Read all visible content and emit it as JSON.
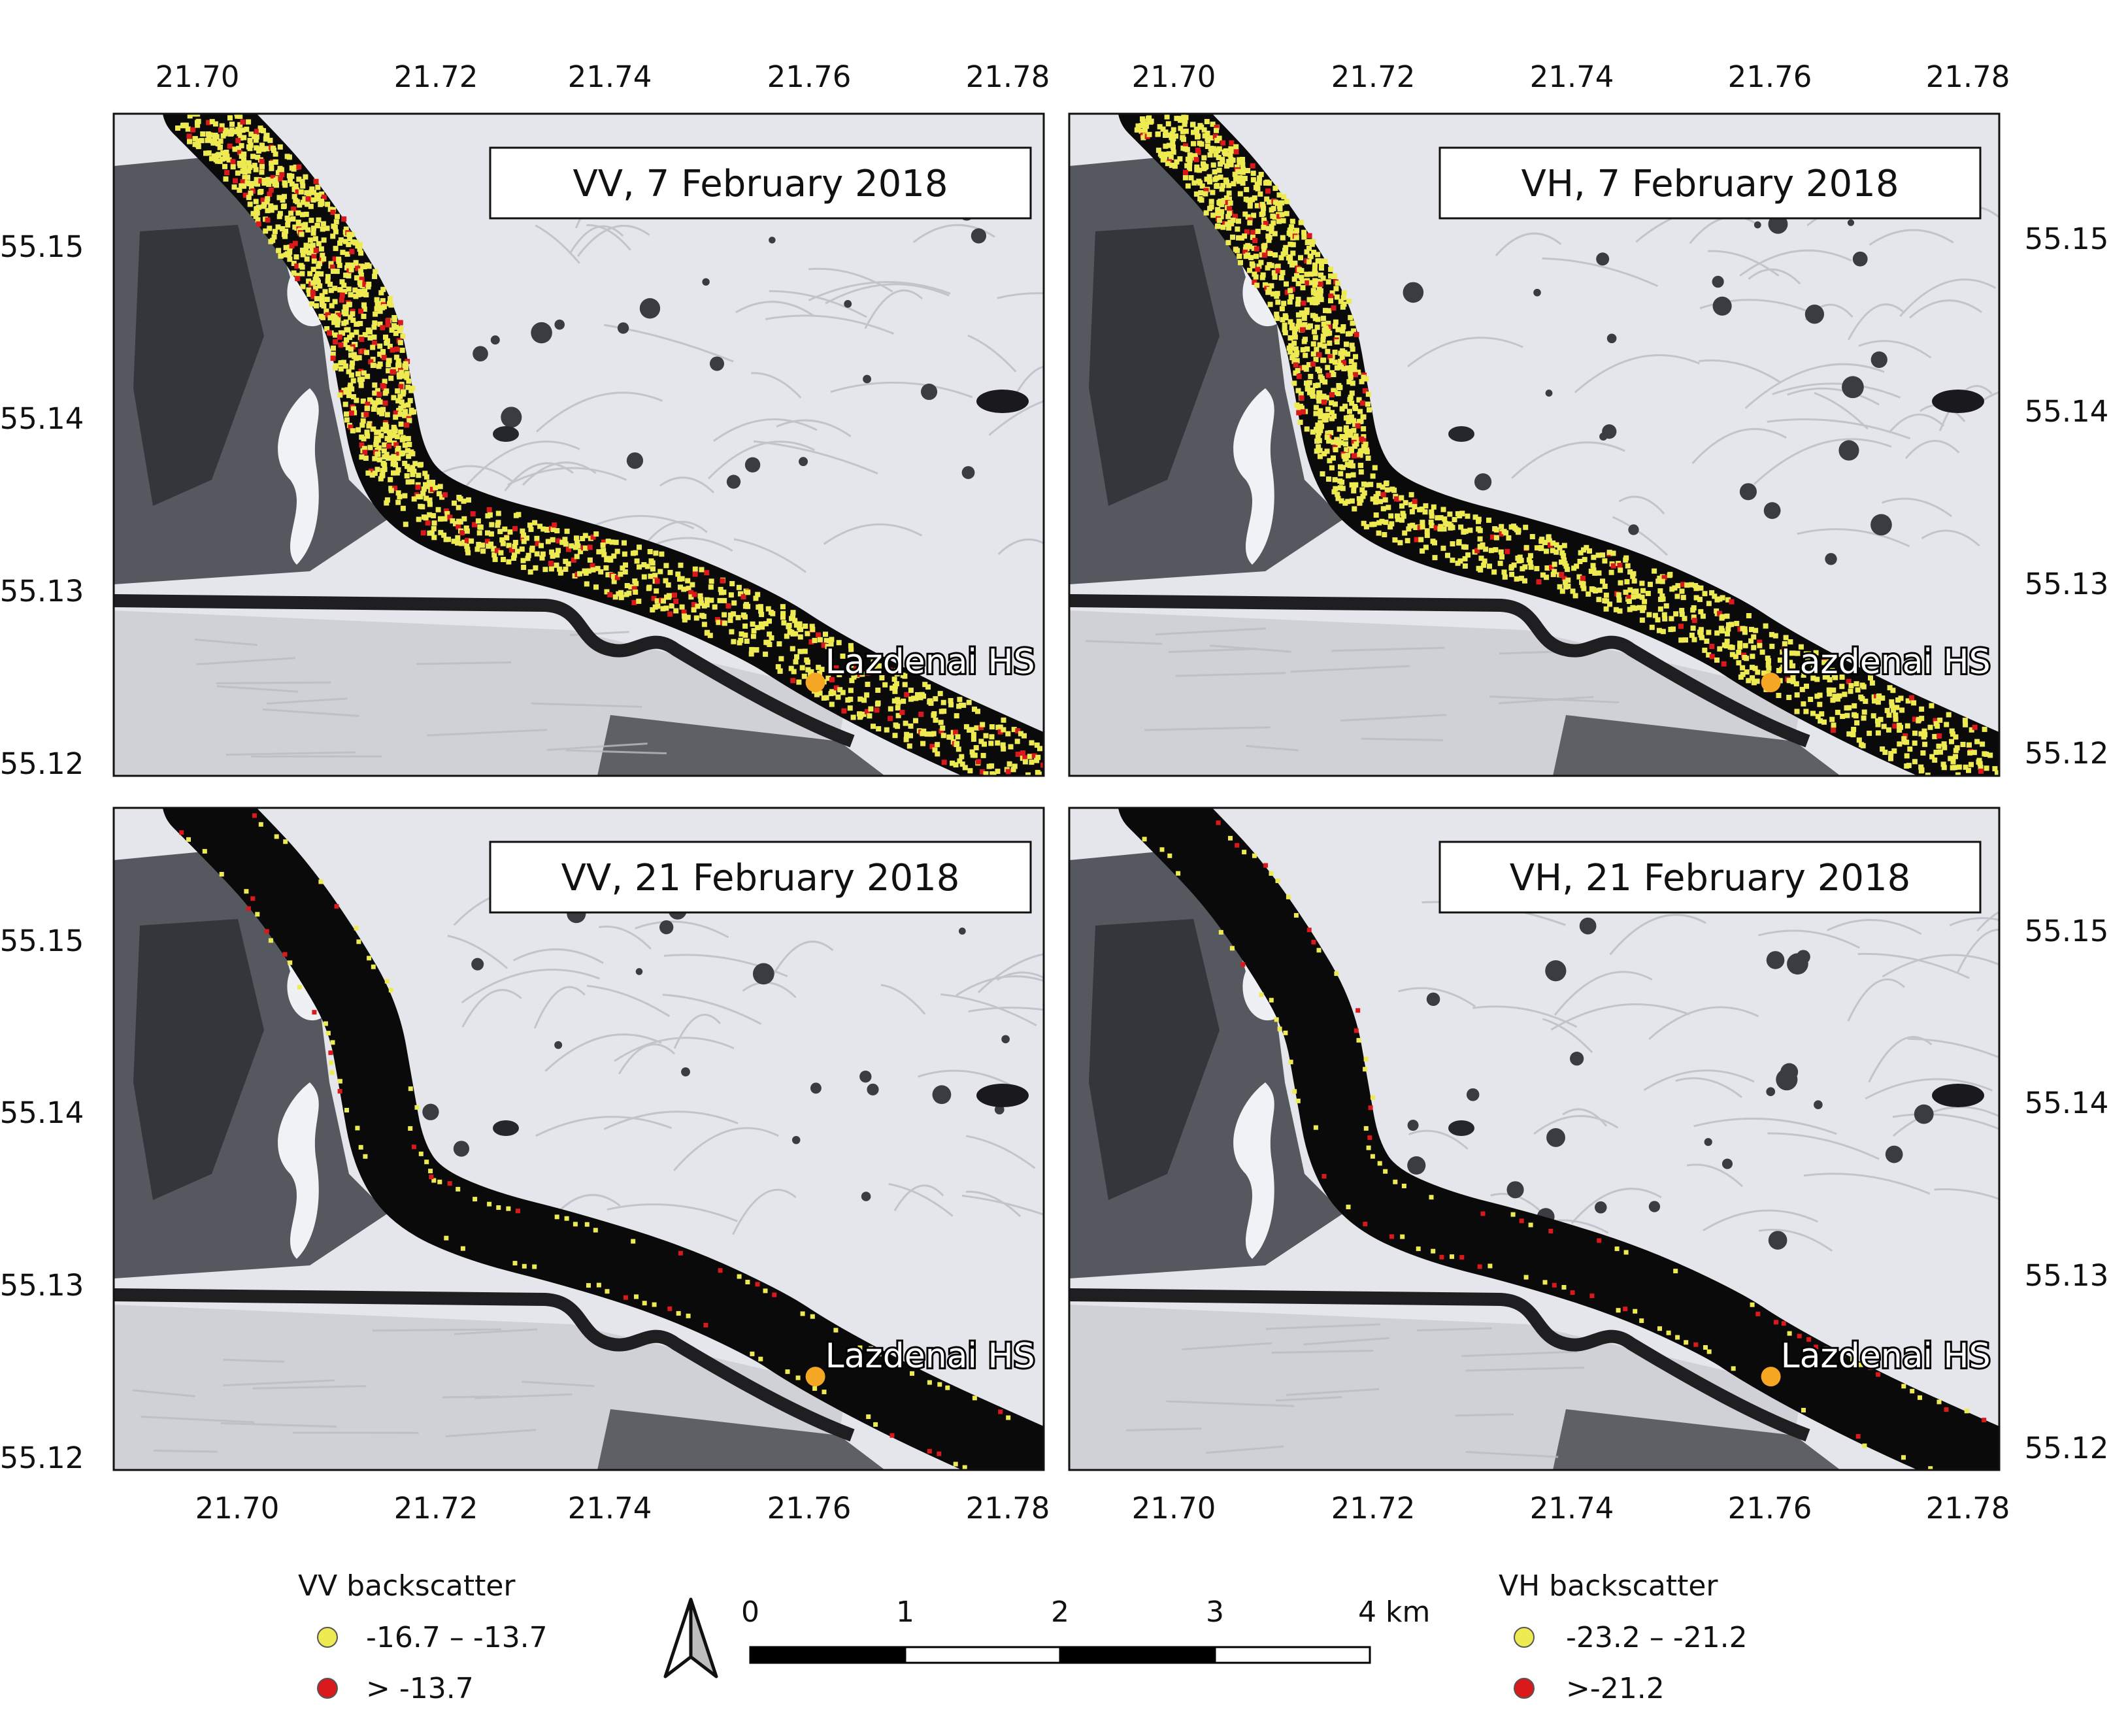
{
  "panels": [
    {
      "id": "vv-feb07",
      "title": "VV, 7 February 2018",
      "date": "2018-02-07",
      "polarization": "VV",
      "ice_extent": "heavy",
      "red_density": 0.13
    },
    {
      "id": "vh-feb07",
      "title": "VH, 7 February 2018",
      "date": "2018-02-07",
      "polarization": "VH",
      "ice_extent": "heavy",
      "red_density": 0.1
    },
    {
      "id": "vv-feb21",
      "title": "VV, 21 February 2018",
      "date": "2018-02-21",
      "polarization": "VV",
      "ice_extent": "sparse",
      "red_density": 0.25
    },
    {
      "id": "vh-feb21",
      "title": "VH, 21 February 2018",
      "date": "2018-02-21",
      "polarization": "VH",
      "ice_extent": "sparse",
      "red_density": 0.25
    }
  ],
  "axes": {
    "longitude_ticks": [
      "21.70",
      "21.72",
      "21.74",
      "21.76",
      "21.78"
    ],
    "latitude_ticks": [
      "55.12",
      "55.13",
      "55.14",
      "55.15"
    ],
    "longitude_range": [
      21.6885,
      21.783
    ],
    "latitude_range": [
      55.1195,
      55.1585
    ]
  },
  "station": {
    "label": "Lazdenai HS",
    "lon": 21.7598,
    "lat": 55.125,
    "color": "#f5a623"
  },
  "legend_vv": {
    "title": "VV backscatter",
    "items": [
      {
        "label": "-16.7 – -13.7",
        "color": "#eeea52"
      },
      {
        "label": "> -13.7",
        "color": "#d9191c"
      }
    ]
  },
  "legend_vh": {
    "title": "VH backscatter",
    "items": [
      {
        "label": "-23.2 – -21.2",
        "color": "#eeea52"
      },
      {
        "label": ">-21.2",
        "color": "#d9191c"
      }
    ]
  },
  "scale_bar": {
    "labels": [
      "0",
      "1",
      "2",
      "3",
      "4 km"
    ]
  },
  "north_arrow": {
    "icon": "north-arrow-icon"
  },
  "colors": {
    "snow": "#e4e6ec",
    "water": "#0a0a0a",
    "forest": "#4a4c52",
    "field_dark": "#5f5f66",
    "ice_yellow": "#eeea52",
    "ice_red": "#d9191c",
    "station": "#f5a623"
  }
}
